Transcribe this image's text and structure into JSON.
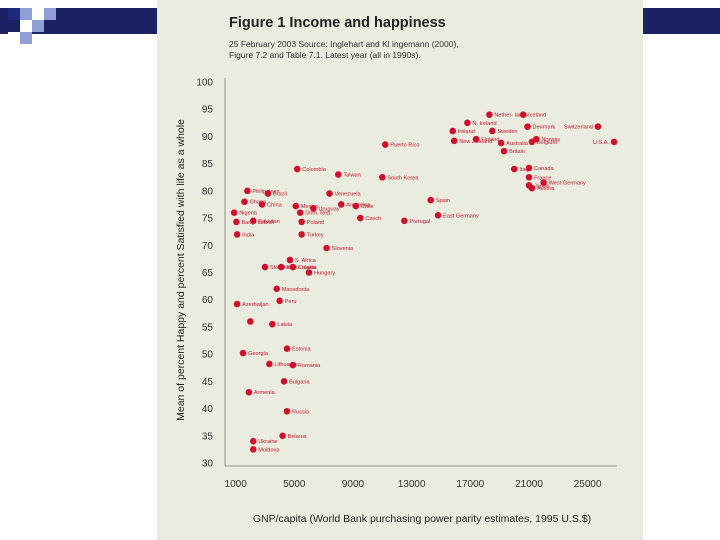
{
  "colors": {
    "panel_bg": "#eaecdf",
    "dot": "#d0102a",
    "label": "#c0142c",
    "deco_navy": "#1f2a7a",
    "deco_blue": "#8f9fd6",
    "deco_header": "#1b2163"
  },
  "figure": {
    "title": "Figure 1 Income and happiness",
    "subtitle_line1": "25 February 2003 Source: Inglehart and Kl ingemann (2000),",
    "subtitle_line2": "Figure 7.2 and Table 7.1. Latest year (all in 1990s)."
  },
  "chart_data": {
    "type": "scatter",
    "xlabel": "GNP/capita (World Bank purchasing power parity estimates, 1995 U.S.$)",
    "ylabel": "Mean of percent Happy and percent Satisfied with life as a whole",
    "xlim": [
      0,
      27000
    ],
    "ylim": [
      30,
      100
    ],
    "xticks": [
      1000,
      5000,
      9000,
      13000,
      17000,
      21000,
      25000
    ],
    "yticks": [
      30,
      35,
      40,
      45,
      50,
      55,
      60,
      65,
      70,
      75,
      80,
      85,
      90,
      95,
      100
    ],
    "grid": false,
    "points": [
      {
        "x": 20600,
        "y": 94,
        "label": "Iceland"
      },
      {
        "x": 18300,
        "y": 94,
        "label": "Nether- lands"
      },
      {
        "x": 16800,
        "y": 92.5,
        "label": "N. Ireland"
      },
      {
        "x": 20900,
        "y": 91.8,
        "label": "Denmark"
      },
      {
        "x": 25700,
        "y": 91.8,
        "label": "Switzerland"
      },
      {
        "x": 15800,
        "y": 91,
        "label": "Ireland"
      },
      {
        "x": 18500,
        "y": 91,
        "label": "Sweden"
      },
      {
        "x": 17400,
        "y": 89.5,
        "label": "Finland"
      },
      {
        "x": 21500,
        "y": 89.5,
        "label": "Norway"
      },
      {
        "x": 21200,
        "y": 89,
        "label": "Belgium"
      },
      {
        "x": 26800,
        "y": 89,
        "label": "U.S.A."
      },
      {
        "x": 19100,
        "y": 88.8,
        "label": "Australia"
      },
      {
        "x": 15900,
        "y": 89.2,
        "label": "New Zealand"
      },
      {
        "x": 19300,
        "y": 87.3,
        "label": "Britain"
      },
      {
        "x": 11200,
        "y": 88.5,
        "label": "Puerto Rico"
      },
      {
        "x": 5200,
        "y": 84,
        "label": "Colombia"
      },
      {
        "x": 8000,
        "y": 83,
        "label": "Taiwan"
      },
      {
        "x": 11000,
        "y": 82.5,
        "label": "South Korea"
      },
      {
        "x": 20000,
        "y": 84,
        "label": "Italy"
      },
      {
        "x": 21000,
        "y": 84.2,
        "label": "Canada"
      },
      {
        "x": 21000,
        "y": 82.5,
        "label": "France"
      },
      {
        "x": 21000,
        "y": 81,
        "label": "Japan"
      },
      {
        "x": 22000,
        "y": 81.5,
        "label": "West Germany"
      },
      {
        "x": 21200,
        "y": 80.5,
        "label": "Austria"
      },
      {
        "x": 1800,
        "y": 80,
        "label": "Philippines"
      },
      {
        "x": 3200,
        "y": 79.5,
        "label": "Brazil"
      },
      {
        "x": 7400,
        "y": 79.5,
        "label": "Venezuela"
      },
      {
        "x": 1600,
        "y": 78,
        "label": "Ghana"
      },
      {
        "x": 2800,
        "y": 77.5,
        "label": "China"
      },
      {
        "x": 5100,
        "y": 77.2,
        "label": "Mexico"
      },
      {
        "x": 6300,
        "y": 76.8,
        "label": "Uruguay"
      },
      {
        "x": 8200,
        "y": 77.5,
        "label": "Argentina"
      },
      {
        "x": 9200,
        "y": 77.2,
        "label": "Chile"
      },
      {
        "x": 5400,
        "y": 76,
        "label": "Dom. Rep."
      },
      {
        "x": 14300,
        "y": 78.3,
        "label": "Spain"
      },
      {
        "x": 900,
        "y": 76,
        "label": "Nigeria"
      },
      {
        "x": 9500,
        "y": 75,
        "label": "Czech"
      },
      {
        "x": 14800,
        "y": 75.5,
        "label": "East Germany"
      },
      {
        "x": 12500,
        "y": 74.5,
        "label": "Portugal"
      },
      {
        "x": 1050,
        "y": 74.3,
        "label": "Bang- ladesh"
      },
      {
        "x": 2200,
        "y": 74.5,
        "label": "Pakistan"
      },
      {
        "x": 5500,
        "y": 74.3,
        "label": "Poland"
      },
      {
        "x": 1100,
        "y": 72,
        "label": "India"
      },
      {
        "x": 5500,
        "y": 72,
        "label": "Turkey"
      },
      {
        "x": 7200,
        "y": 69.5,
        "label": "Slovenia"
      },
      {
        "x": 4700,
        "y": 67.3,
        "label": "S. Africa"
      },
      {
        "x": 4900,
        "y": 66,
        "label": "Croatia"
      },
      {
        "x": 3000,
        "y": 66,
        "label": "Slovakia"
      },
      {
        "x": 4100,
        "y": 66,
        "label": "Yugo- slavia"
      },
      {
        "x": 6000,
        "y": 65,
        "label": "Hungary"
      },
      {
        "x": 3800,
        "y": 62,
        "label": "Macedonia"
      },
      {
        "x": 4000,
        "y": 59.8,
        "label": "Peru"
      },
      {
        "x": 1100,
        "y": 59.2,
        "label": "Azerbaijan"
      },
      {
        "x": 2000,
        "y": 56,
        "label": ""
      },
      {
        "x": 3500,
        "y": 55.5,
        "label": "Latvia"
      },
      {
        "x": 4500,
        "y": 51,
        "label": "Estonia"
      },
      {
        "x": 1500,
        "y": 50.2,
        "label": "Georgia"
      },
      {
        "x": 3300,
        "y": 48.2,
        "label": "Lithuania"
      },
      {
        "x": 4900,
        "y": 48,
        "label": "Romania"
      },
      {
        "x": 4300,
        "y": 45,
        "label": "Bulgaria"
      },
      {
        "x": 1900,
        "y": 43,
        "label": "Armenia"
      },
      {
        "x": 4500,
        "y": 39.5,
        "label": "Russia"
      },
      {
        "x": 4200,
        "y": 35,
        "label": "Belarus"
      },
      {
        "x": 2200,
        "y": 34,
        "label": "Ukraine"
      },
      {
        "x": 2200,
        "y": 32.5,
        "label": "Moldova"
      }
    ]
  }
}
